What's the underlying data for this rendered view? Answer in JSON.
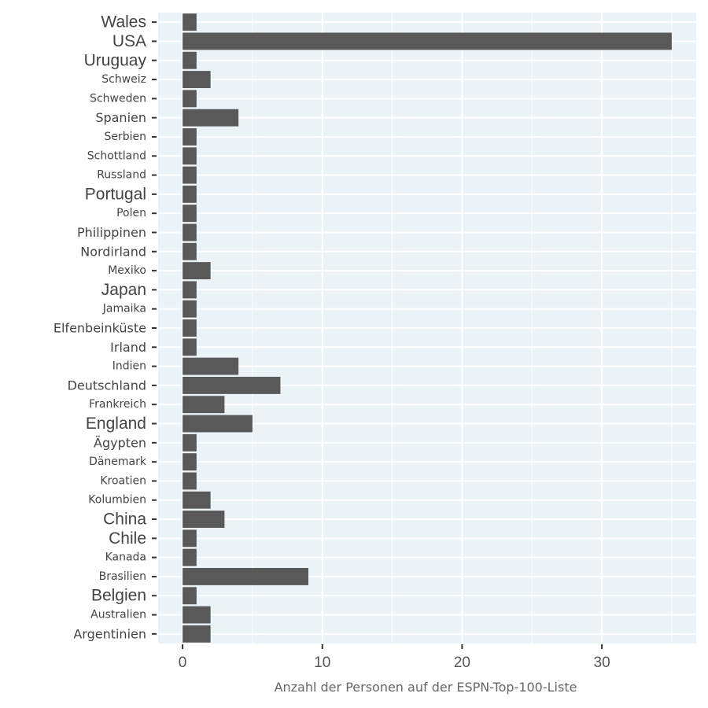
{
  "chart_data": {
    "type": "bar",
    "orientation": "horizontal",
    "categories": [
      "Wales",
      "USA",
      "Uruguay",
      "Schweiz",
      "Schweden",
      "Spanien",
      "Serbien",
      "Schottland",
      "Russland",
      "Portugal",
      "Polen",
      "Philippinen",
      "Nordirland",
      "Mexiko",
      "Japan",
      "Jamaika",
      "Elfenbeinküste",
      "Irland",
      "Indien",
      "Deutschland",
      "Frankreich",
      "England",
      "Ägypten",
      "Dänemark",
      "Kroatien",
      "Kolumbien",
      "China",
      "Chile",
      "Kanada",
      "Brasilien",
      "Belgien",
      "Australien",
      "Argentinien"
    ],
    "values": [
      1,
      35,
      1,
      2,
      1,
      4,
      1,
      1,
      1,
      1,
      1,
      1,
      1,
      2,
      1,
      1,
      1,
      1,
      4,
      7,
      3,
      5,
      1,
      1,
      1,
      2,
      3,
      1,
      1,
      9,
      1,
      2,
      2
    ],
    "label_sizes": [
      "large",
      "large",
      "large",
      "small",
      "small",
      "medium",
      "small",
      "small",
      "small",
      "large",
      "small",
      "medium",
      "medium",
      "small",
      "large",
      "small",
      "medium",
      "medium",
      "small",
      "medium",
      "small",
      "large",
      "medium",
      "small",
      "small",
      "small",
      "large",
      "large",
      "small",
      "small",
      "large",
      "small",
      "medium"
    ],
    "title": "",
    "xlabel": "Anzahl der Personen auf der ESPN-Top-100-Liste",
    "ylabel": "",
    "xlim": [
      -1.75,
      36.75
    ],
    "xticks": [
      0,
      10,
      20,
      30
    ],
    "grid": true,
    "legend": "none",
    "colors": {
      "bar": "#595959",
      "panel": "#ebf3f6",
      "grid": "#ffffff",
      "text": "#444444",
      "tick": "#333333"
    }
  }
}
